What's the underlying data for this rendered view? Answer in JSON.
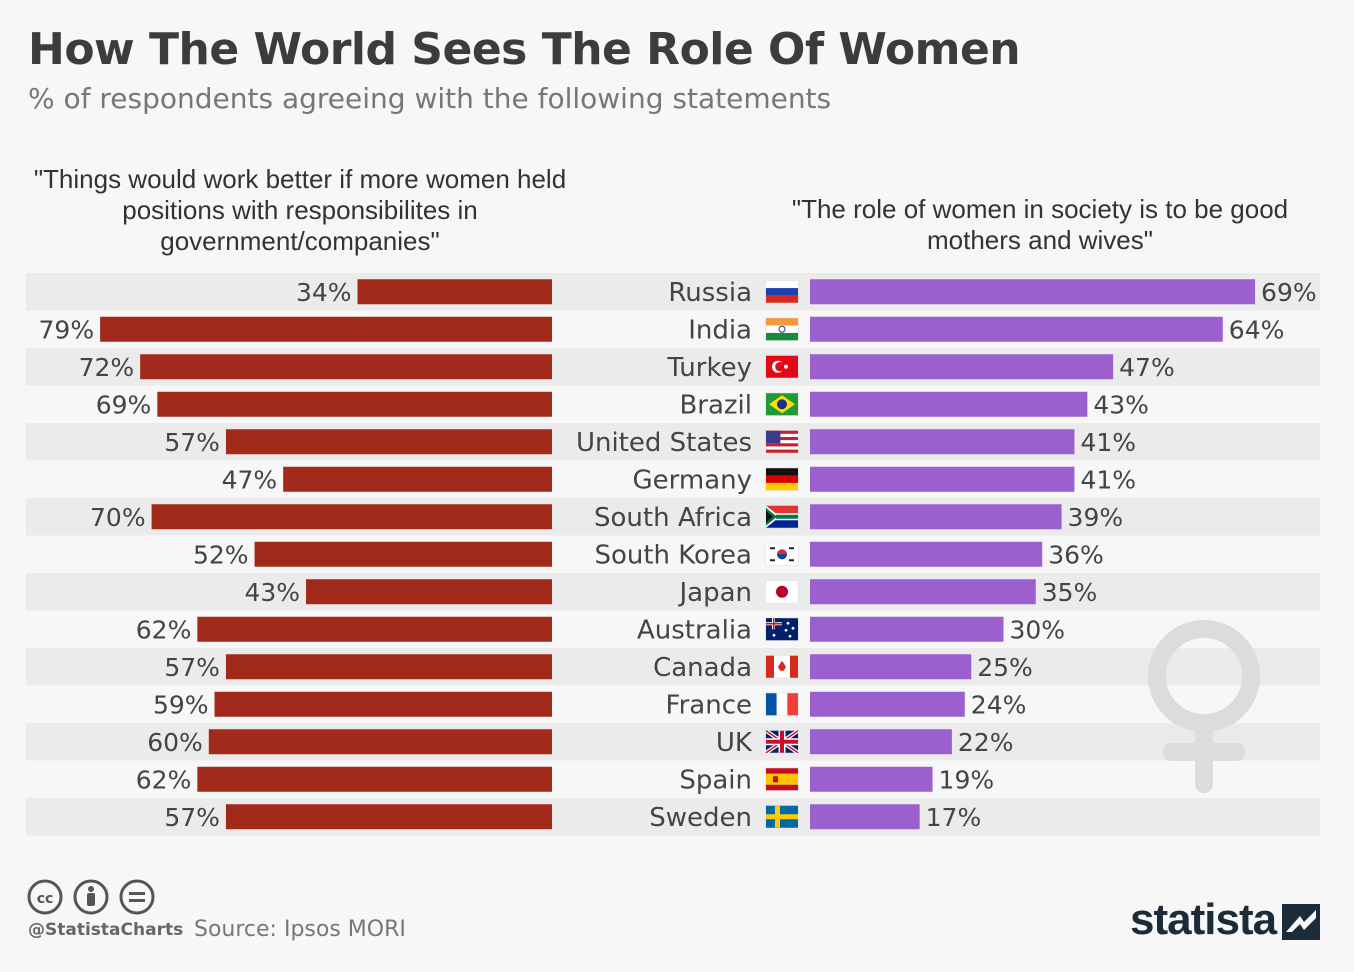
{
  "header": {
    "title": "How The World Sees The Role Of Women",
    "subtitle": "% of respondents agreeing with the following statements"
  },
  "chart_data": {
    "type": "bar",
    "orientation": "horizontal",
    "categories": [
      "Russia",
      "India",
      "Turkey",
      "Brazil",
      "United States",
      "Germany",
      "South Africa",
      "South Korea",
      "Japan",
      "Australia",
      "Canada",
      "France",
      "UK",
      "Spain",
      "Sweden"
    ],
    "series": [
      {
        "name": "\"Things would work better if more women held positions with responsibilites in government/companies\"",
        "values": [
          34,
          79,
          72,
          69,
          57,
          47,
          70,
          52,
          43,
          62,
          57,
          59,
          60,
          62,
          57
        ],
        "color": "#a12a1a"
      },
      {
        "name": "\"The role of women in society is to be good mothers and wives\"",
        "values": [
          69,
          64,
          47,
          43,
          41,
          41,
          39,
          36,
          35,
          30,
          25,
          24,
          22,
          19,
          17
        ],
        "color": "#9b5fce"
      }
    ],
    "value_suffix": "%"
  },
  "footer": {
    "handle": "@StatistaCharts",
    "source": "Source: Ipsos MORI",
    "brand": "statista"
  },
  "icons": {
    "license": [
      "cc-icon",
      "attribution-icon",
      "no-derivatives-icon"
    ],
    "decoration": "venus-symbol-icon",
    "flags": [
      "russia-flag-icon",
      "india-flag-icon",
      "turkey-flag-icon",
      "brazil-flag-icon",
      "usa-flag-icon",
      "germany-flag-icon",
      "south-africa-flag-icon",
      "south-korea-flag-icon",
      "japan-flag-icon",
      "australia-flag-icon",
      "canada-flag-icon",
      "france-flag-icon",
      "uk-flag-icon",
      "spain-flag-icon",
      "sweden-flag-icon"
    ]
  }
}
